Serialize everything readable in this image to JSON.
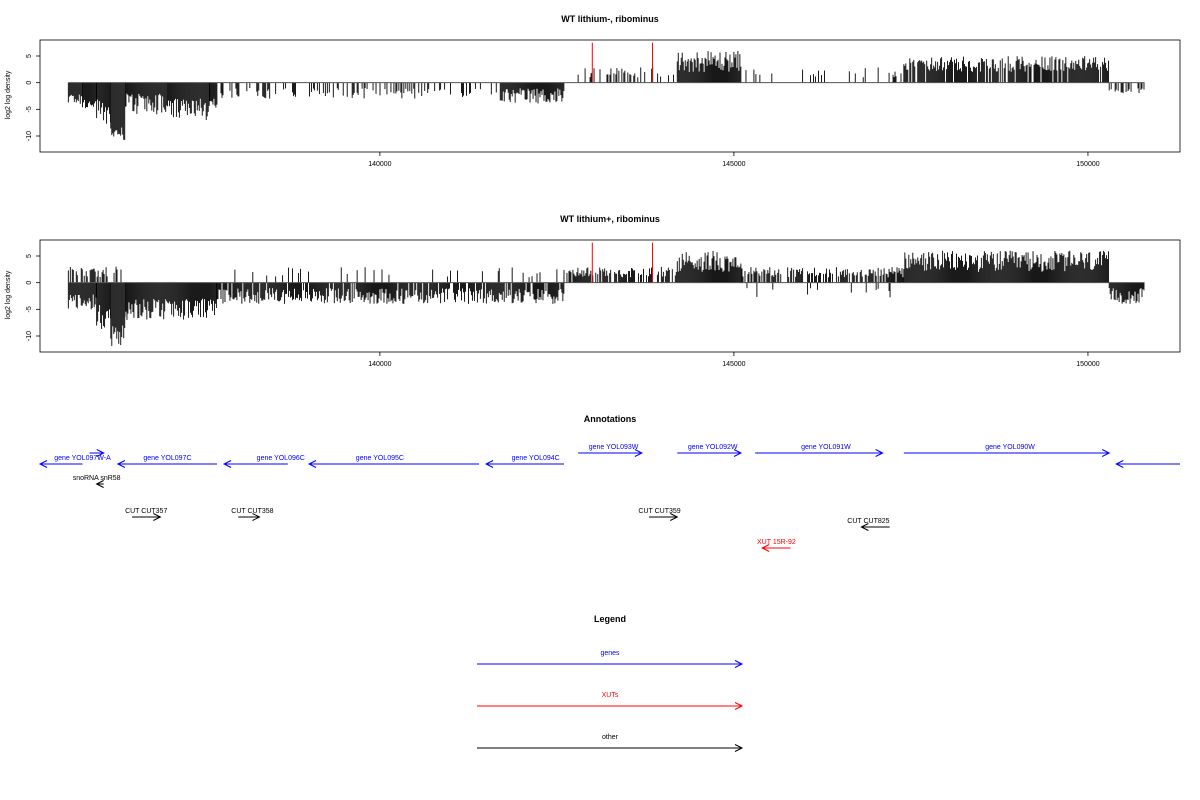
{
  "colors": {
    "gene": "#0000ff",
    "xut": "#ff0000",
    "other": "#000000",
    "bars": "#000000",
    "highlight": "#ff0000"
  },
  "chart_data": [
    {
      "type": "bar",
      "title": "WT lithium-, ribominus",
      "ylabel": "log2 log density",
      "xlim": [
        135200,
        151300
      ],
      "ylim": [
        -13,
        8
      ],
      "yticks": [
        5,
        0,
        -5,
        -10
      ],
      "xticks": [
        140000,
        145000,
        150000
      ],
      "highlights": [
        143000,
        143850
      ],
      "highlight_value": 7.5,
      "profile": [
        {
          "from": 135600,
          "to": 135800,
          "min": -4,
          "max": -2,
          "sign": -1
        },
        {
          "from": 135800,
          "to": 136000,
          "min": -5,
          "max": -3,
          "sign": -1
        },
        {
          "from": 136000,
          "to": 136200,
          "min": -8,
          "max": -3,
          "sign": -1
        },
        {
          "from": 136200,
          "to": 136400,
          "min": -11,
          "max": -8,
          "sign": -1
        },
        {
          "from": 136400,
          "to": 137000,
          "min": -6,
          "max": -2,
          "sign": -1
        },
        {
          "from": 137000,
          "to": 137600,
          "min": -7,
          "max": -3,
          "sign": -1
        },
        {
          "from": 137600,
          "to": 137700,
          "min": -5,
          "max": -3,
          "sign": -1
        },
        {
          "from": 137700,
          "to": 141700,
          "min": -3,
          "max": -1,
          "sign": -1,
          "sparse": 0.25
        },
        {
          "from": 141700,
          "to": 142600,
          "min": -4,
          "max": -1,
          "sign": -1
        },
        {
          "from": 142800,
          "to": 144200,
          "min": 1,
          "max": 3,
          "sign": 1,
          "sparse": 0.35
        },
        {
          "from": 144200,
          "to": 145100,
          "min": 2,
          "max": 6,
          "sign": 1
        },
        {
          "from": 145100,
          "to": 147400,
          "min": 1,
          "max": 3,
          "sign": 1,
          "sparse": 0.12
        },
        {
          "from": 147400,
          "to": 150300,
          "min": 2,
          "max": 5,
          "sign": 1,
          "sparse": 0.85
        },
        {
          "from": 150300,
          "to": 150800,
          "min": -2,
          "max": -1,
          "sign": -1,
          "sparse": 0.5
        }
      ]
    },
    {
      "type": "bar",
      "title": "WT lithium+, ribominus",
      "ylabel": "log2 log density",
      "xlim": [
        135200,
        151300
      ],
      "ylim": [
        -13,
        8
      ],
      "yticks": [
        5,
        0,
        -5,
        -10
      ],
      "xticks": [
        140000,
        145000,
        150000
      ],
      "highlights": [
        143000,
        143850
      ],
      "highlight_value": 7.5,
      "profile": [
        {
          "from": 135600,
          "to": 136000,
          "min": -5,
          "max": -2,
          "sign": -1
        },
        {
          "from": 135600,
          "to": 136400,
          "min": 1,
          "max": 3,
          "sign": 1,
          "sparse": 0.5
        },
        {
          "from": 136000,
          "to": 136200,
          "min": -9,
          "max": -4,
          "sign": -1
        },
        {
          "from": 136200,
          "to": 136400,
          "min": -12,
          "max": -8,
          "sign": -1
        },
        {
          "from": 136400,
          "to": 137700,
          "min": -7,
          "max": -3,
          "sign": -1
        },
        {
          "from": 137700,
          "to": 142600,
          "min": -4,
          "max": -1,
          "sign": -1,
          "sparse": 0.9
        },
        {
          "from": 137700,
          "to": 142600,
          "min": 1,
          "max": 3,
          "sign": 1,
          "sparse": 0.08
        },
        {
          "from": 142600,
          "to": 144200,
          "min": 1,
          "max": 3,
          "sign": 1,
          "sparse": 0.7
        },
        {
          "from": 144200,
          "to": 145100,
          "min": 2,
          "max": 6,
          "sign": 1
        },
        {
          "from": 145100,
          "to": 147400,
          "min": 1,
          "max": 3,
          "sign": 1,
          "sparse": 0.7
        },
        {
          "from": 145100,
          "to": 147400,
          "min": -3,
          "max": -1,
          "sign": -1,
          "sparse": 0.1
        },
        {
          "from": 147400,
          "to": 150300,
          "min": 2,
          "max": 6,
          "sign": 1
        },
        {
          "from": 150300,
          "to": 150800,
          "min": -4,
          "max": -1,
          "sign": -1
        }
      ]
    }
  ],
  "annotations": {
    "title": "Annotations",
    "features": [
      {
        "label": "gene YOL097W-A",
        "kind": "gene",
        "start": 135200,
        "end": 135800,
        "strand": "-",
        "row": 1,
        "label_at": 135800
      },
      {
        "label": "",
        "kind": "gene",
        "start": 135900,
        "end": 136100,
        "strand": "+",
        "row": 0,
        "label_at": 0
      },
      {
        "label": "gene YOL097C",
        "kind": "gene",
        "start": 136300,
        "end": 137700,
        "strand": "-",
        "row": 1,
        "label_at": 137000
      },
      {
        "label": "gene YOL096C",
        "kind": "gene",
        "start": 137800,
        "end": 138700,
        "strand": "-",
        "row": 1,
        "label_at": 138600
      },
      {
        "label": "gene YOL095C",
        "kind": "gene",
        "start": 139000,
        "end": 141400,
        "strand": "-",
        "row": 1,
        "label_at": 140000
      },
      {
        "label": "gene YOL094C",
        "kind": "gene",
        "start": 141500,
        "end": 142600,
        "strand": "-",
        "row": 1,
        "label_at": 142200
      },
      {
        "label": "gene YOL093W",
        "kind": "gene",
        "start": 142800,
        "end": 143700,
        "strand": "+",
        "row": 0,
        "label_at": 143300
      },
      {
        "label": "gene YOL092W",
        "kind": "gene",
        "start": 144200,
        "end": 145100,
        "strand": "+",
        "row": 0,
        "label_at": 144700
      },
      {
        "label": "gene YOL091W",
        "kind": "gene",
        "start": 145300,
        "end": 147100,
        "strand": "+",
        "row": 0,
        "label_at": 146300
      },
      {
        "label": "gene YOL090W",
        "kind": "gene",
        "start": 147400,
        "end": 150300,
        "strand": "+",
        "row": 0,
        "label_at": 148900
      },
      {
        "label": "",
        "kind": "gene",
        "start": 150400,
        "end": 151300,
        "strand": "-",
        "row": 1,
        "label_at": 0
      },
      {
        "label": "snoRNA snR58",
        "kind": "other",
        "start": 136000,
        "end": 136100,
        "strand": "-",
        "row": 2,
        "label_at": 136000
      },
      {
        "label": "CUT CUT357",
        "kind": "other",
        "start": 136500,
        "end": 136900,
        "strand": "+",
        "row": 3,
        "label_at": 136700
      },
      {
        "label": "CUT CUT358",
        "kind": "other",
        "start": 138000,
        "end": 138300,
        "strand": "+",
        "row": 3,
        "label_at": 138200
      },
      {
        "label": "CUT CUT359",
        "kind": "other",
        "start": 143800,
        "end": 144200,
        "strand": "+",
        "row": 3,
        "label_at": 143950
      },
      {
        "label": "CUT CUT825",
        "kind": "other",
        "start": 146800,
        "end": 147200,
        "strand": "-",
        "row": 4,
        "label_at": 146900
      },
      {
        "label": "XUT 15R-92",
        "kind": "xut",
        "start": 145400,
        "end": 145800,
        "strand": "-",
        "row": 5,
        "label_at": 145600
      }
    ]
  },
  "legend": {
    "title": "Legend",
    "items": [
      {
        "label": "genes",
        "kind": "gene"
      },
      {
        "label": "XUTs",
        "kind": "xut"
      },
      {
        "label": "other",
        "kind": "other"
      }
    ]
  }
}
